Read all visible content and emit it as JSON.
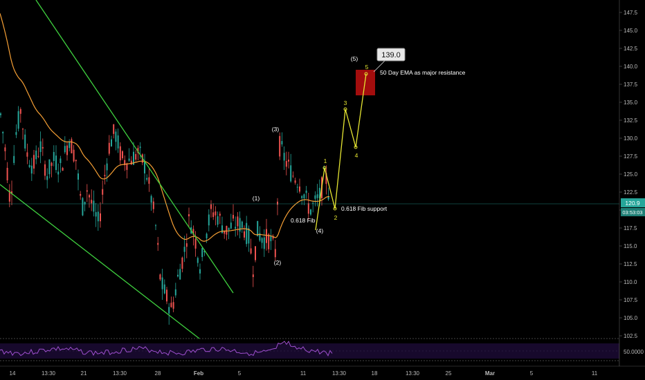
{
  "chart_data": {
    "type": "candlestick",
    "title": "",
    "price_axis": {
      "ticks": [
        "147.5",
        "145.0",
        "142.5",
        "140.0",
        "137.5",
        "135.0",
        "132.5",
        "130.0",
        "127.5",
        "125.0",
        "122.5",
        "120.0",
        "117.5",
        "115.0",
        "112.5",
        "110.0",
        "107.5",
        "105.0",
        "102.5"
      ],
      "ylim": [
        102,
        149
      ],
      "current_price": "120.9",
      "countdown": "03:53:03"
    },
    "rsi_axis": {
      "label": "50.0000"
    },
    "time_axis": {
      "ticks": [
        "14",
        "13:30",
        "21",
        "13:30",
        "28",
        "Feb",
        "5",
        "11",
        "13:30",
        "18",
        "13:30",
        "25",
        "Mar",
        "5",
        "11"
      ],
      "bold_ticks": [
        "Feb",
        "Mar"
      ]
    },
    "wave_labels": {
      "primary": [
        "(1)",
        "(2)",
        "(3)",
        "(4)",
        "(5)"
      ],
      "minor": [
        "1",
        "2",
        "3",
        "4",
        "5"
      ]
    },
    "target_label": "139.0",
    "annotations": {
      "ema_resistance": "50 Day EMA as major resistance",
      "fib_support": "0.618 Fib support",
      "fib": "0.618 Fib"
    },
    "projection_path": [
      117.5,
      125.8,
      120.0,
      134.0,
      128.5,
      139.0
    ],
    "colors": {
      "up": "#26a69a",
      "down": "#ef5350",
      "ema": "#f7a035",
      "trendline": "#3fd13f",
      "projection": "#e6e632",
      "target_box": "#a30d0d",
      "rsi": "#a050d0",
      "price_tag": "#26a69a"
    }
  }
}
